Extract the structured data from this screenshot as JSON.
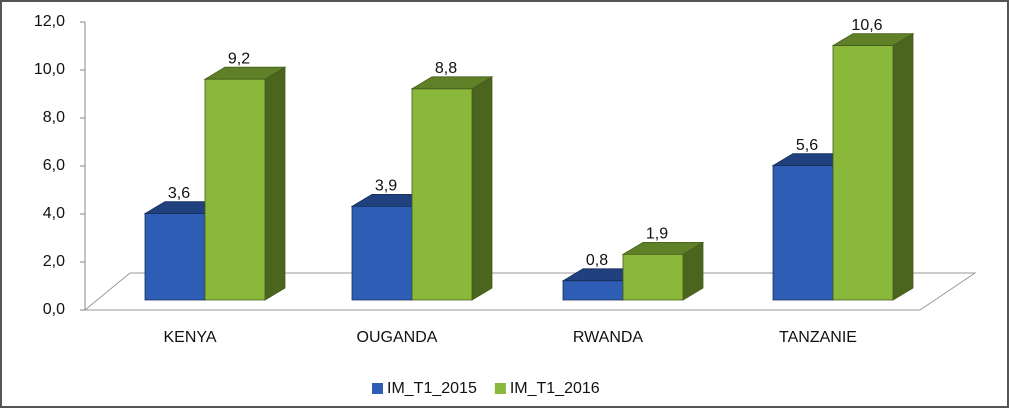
{
  "chart_data": {
    "type": "bar3d",
    "categories": [
      "KENYA",
      "OUGANDA",
      "RWANDA",
      "TANZANIE"
    ],
    "series": [
      {
        "name": "IM_T1_2015",
        "color": "#2e5db5",
        "values": [
          3.6,
          3.9,
          0.8,
          5.6
        ],
        "value_labels": [
          "3,6",
          "3,9",
          "0,8",
          "5,6"
        ]
      },
      {
        "name": "IM_T1_2016",
        "color": "#8ab83a",
        "values": [
          9.2,
          8.8,
          1.9,
          10.6
        ],
        "value_labels": [
          "9,2",
          "8,8",
          "1,9",
          "10,6"
        ]
      }
    ],
    "ylim": [
      0,
      12
    ],
    "yticks": [
      {
        "value": 0,
        "label": "0,0"
      },
      {
        "value": 2,
        "label": "2,0"
      },
      {
        "value": 4,
        "label": "4,0"
      },
      {
        "value": 6,
        "label": "6,0"
      },
      {
        "value": 8,
        "label": "8,0"
      },
      {
        "value": 10,
        "label": "10,0"
      },
      {
        "value": 12,
        "label": "12,0"
      }
    ],
    "grid": false,
    "legend": "bottom"
  }
}
